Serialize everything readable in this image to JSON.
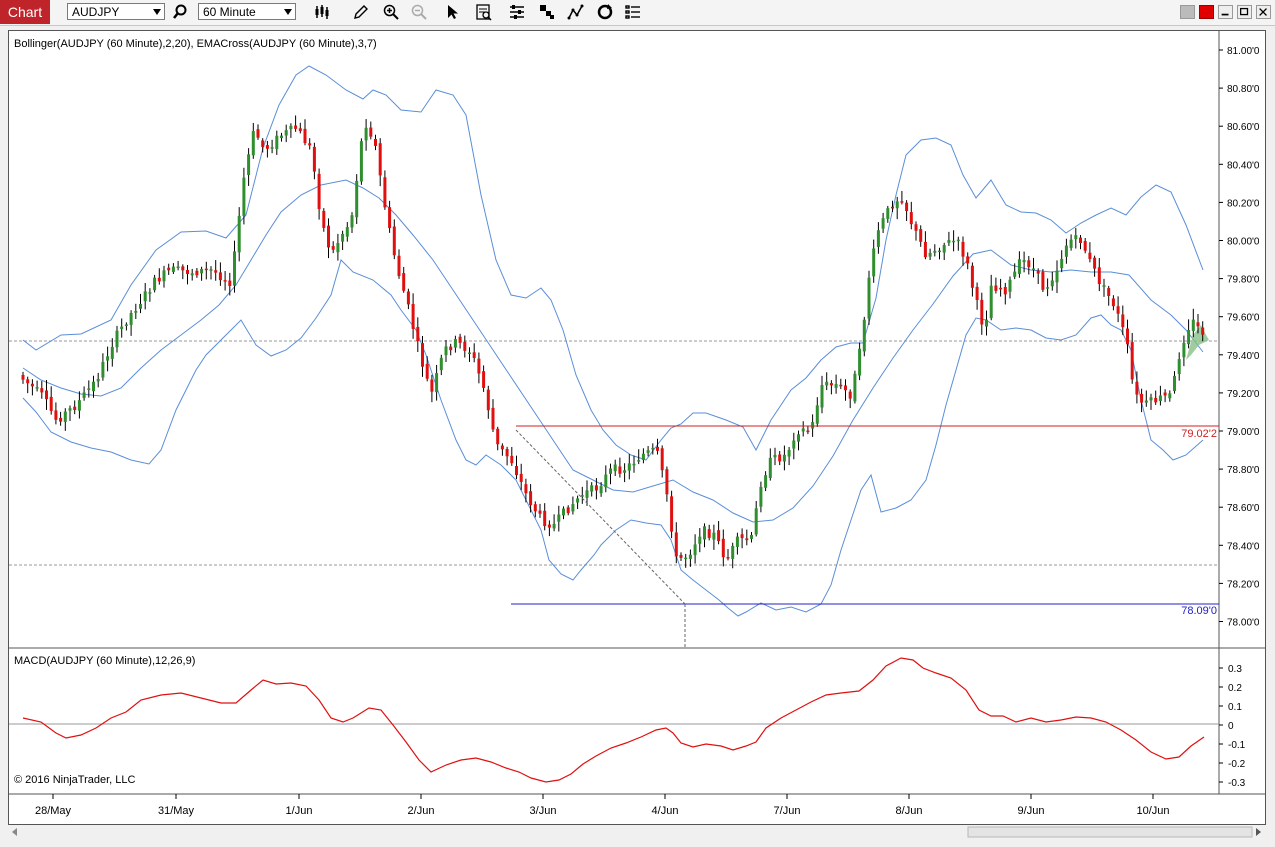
{
  "toolbar": {
    "chart_label": "Chart",
    "instrument": "AUDJPY",
    "interval": "60 Minute"
  },
  "panel_titles": {
    "price": "Bollinger(AUDJPY (60 Minute),2,20), EMACross(AUDJPY (60 Minute),3,7)",
    "macd": "MACD(AUDJPY (60 Minute),12,26,9)"
  },
  "copyright": "© 2016 NinjaTrader, LLC",
  "price_axis": {
    "ticks": [
      "81.00'0",
      "80.80'0",
      "80.60'0",
      "80.40'0",
      "80.20'0",
      "80.00'0",
      "79.80'0",
      "79.60'0",
      "79.40'0",
      "79.20'0",
      "79.00'0",
      "78.80'0",
      "78.60'0",
      "78.40'0",
      "78.20'0",
      "78.00'0"
    ]
  },
  "macd_axis": {
    "ticks": [
      "0.3",
      "0.2",
      "0.1",
      "0",
      "-0.1",
      "-0.2",
      "-0.3"
    ]
  },
  "time_axis": {
    "labels": [
      "28/May",
      "31/May",
      "1/Jun",
      "2/Jun",
      "3/Jun",
      "4/Jun",
      "7/Jun",
      "8/Jun",
      "9/Jun",
      "10/Jun"
    ]
  },
  "levels": {
    "red_label": "79.02'2",
    "blue_label": "78.09'0"
  },
  "colors": {
    "up": "#2f8f2f",
    "down": "#e01010",
    "bollinger": "#5a8ed8",
    "macd": "#e01010",
    "red_line": "#d02020",
    "blue_line": "#2020c8",
    "brand": "#c0242b"
  }
}
